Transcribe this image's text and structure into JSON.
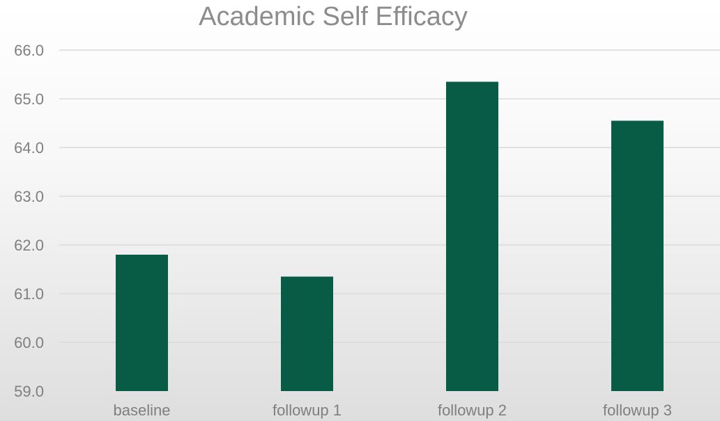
{
  "chart_data": {
    "type": "bar",
    "title": "Academic Self Efficacy",
    "categories": [
      "baseline",
      "followup 1",
      "followup 2",
      "followup 3"
    ],
    "values": [
      61.8,
      61.35,
      65.35,
      64.55
    ],
    "ylim": [
      59.0,
      66.0
    ],
    "yticks": [
      "59.0",
      "60.0",
      "61.0",
      "62.0",
      "63.0",
      "64.0",
      "65.0",
      "66.0"
    ],
    "xlabel": "",
    "ylabel": "",
    "grid": true,
    "legend": "none",
    "bar_color": "#085b45"
  }
}
